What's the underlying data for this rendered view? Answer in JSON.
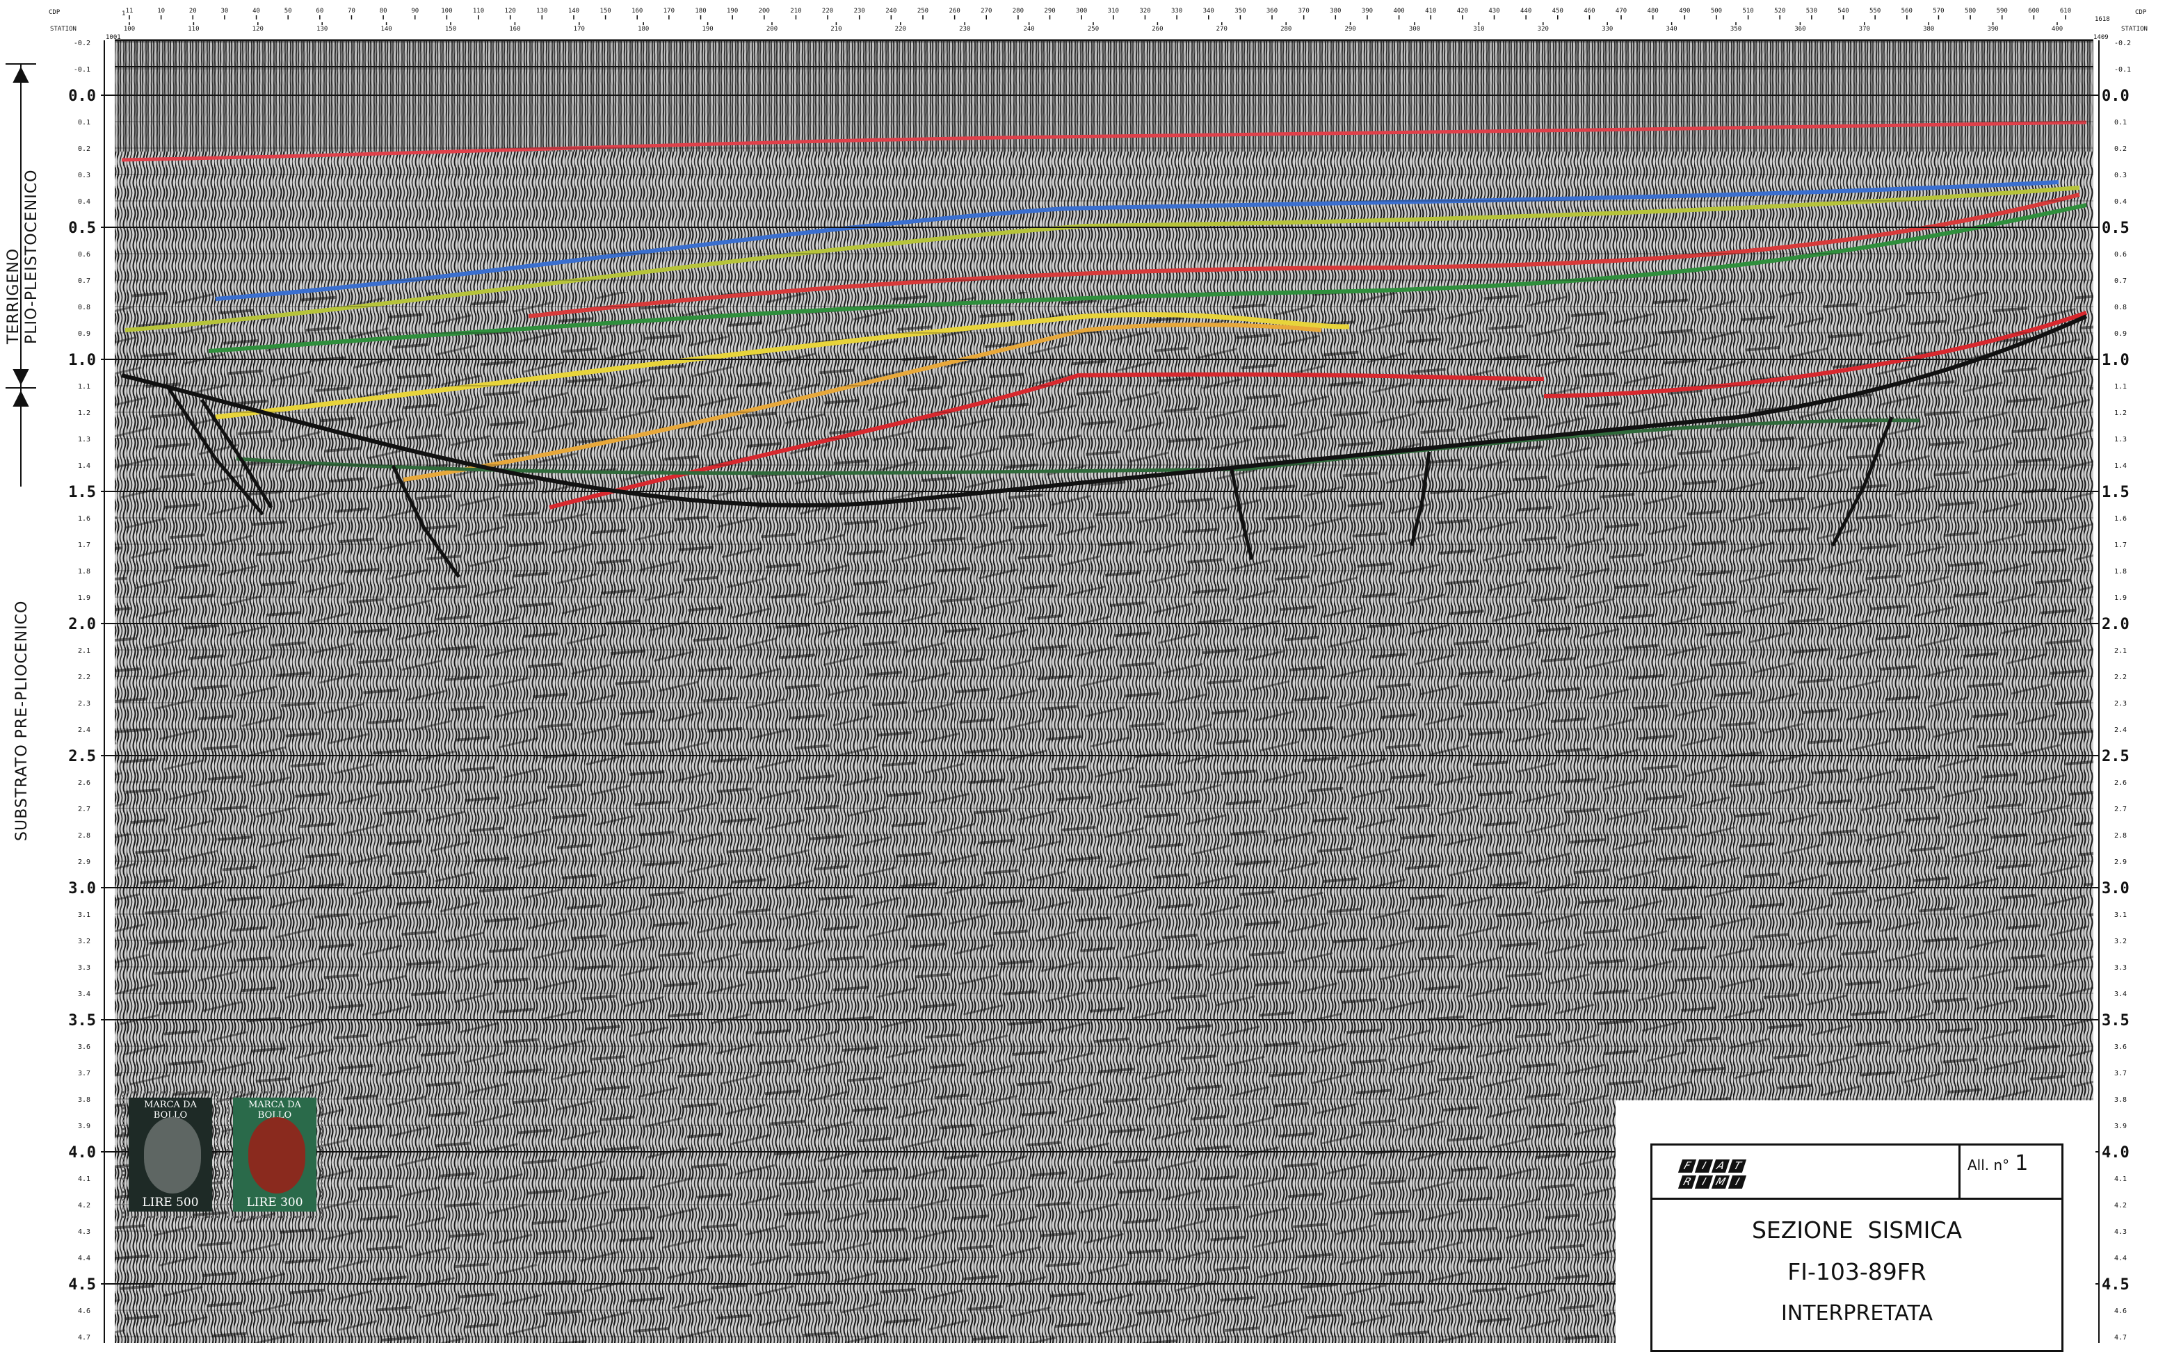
{
  "header": {
    "cdp_label_left": "CDP",
    "station_label_left": "STATION",
    "cdp_label_right": "CDP",
    "station_label_right": "STATION",
    "cdp_first": "1",
    "cdp_last": "1618",
    "station_first": "1001",
    "station_last": "1409",
    "cdp_ticks": [
      "11",
      "10",
      "20",
      "30",
      "40",
      "50",
      "60",
      "70",
      "80",
      "90",
      "100",
      "110",
      "120",
      "130",
      "140",
      "150",
      "160",
      "170",
      "180",
      "190",
      "200",
      "210",
      "220",
      "230",
      "240",
      "250",
      "260",
      "270",
      "280",
      "290",
      "300",
      "310",
      "320",
      "330",
      "340",
      "350",
      "360",
      "370",
      "380",
      "390",
      "400",
      "410",
      "420",
      "430",
      "440",
      "450",
      "460",
      "470",
      "480",
      "490",
      "500",
      "510",
      "520",
      "530",
      "540",
      "550",
      "560",
      "570",
      "580",
      "590",
      "600",
      "610"
    ],
    "station_ticks": [
      "100",
      "110",
      "120",
      "130",
      "140",
      "150",
      "160",
      "170",
      "180",
      "190",
      "200",
      "210",
      "220",
      "230",
      "240",
      "250",
      "260",
      "270",
      "280",
      "290",
      "300",
      "310",
      "320",
      "330",
      "340",
      "350",
      "360",
      "370",
      "380",
      "390",
      "400"
    ]
  },
  "time_axis": {
    "major": [
      "0.0",
      "0.5",
      "1.0",
      "1.5",
      "2.0",
      "2.5",
      "3.0",
      "3.5",
      "4.0",
      "4.5"
    ],
    "minor": [
      "-0.2",
      "-0.1",
      "0.1",
      "0.2",
      "0.3",
      "0.4",
      "0.6",
      "0.7",
      "0.8",
      "0.9",
      "1.1",
      "1.2",
      "1.3",
      "1.4",
      "1.6",
      "1.7",
      "1.8",
      "1.9",
      "2.1",
      "2.2",
      "2.3",
      "2.4",
      "2.6",
      "2.7",
      "2.8",
      "2.9",
      "3.1",
      "3.2",
      "3.3",
      "3.4",
      "3.6",
      "3.7",
      "3.8",
      "3.9",
      "4.1",
      "4.2",
      "4.3",
      "4.4",
      "4.6",
      "4.7"
    ]
  },
  "units": {
    "upper_line1": "TERRIGENO",
    "upper_line2": "PLIO-PLEISTOCENICO",
    "lower_line1": "SUBSTRATO   PRE-PLIOCENICO"
  },
  "horizons": [
    {
      "color": "#e0404a",
      "name": "h-red-shallow"
    },
    {
      "color": "#3a6fd0",
      "name": "h-blue"
    },
    {
      "color": "#b7c43a",
      "name": "h-yellowgreen"
    },
    {
      "color": "#d83a3a",
      "name": "h-red-mid"
    },
    {
      "color": "#2f8f3c",
      "name": "h-green"
    },
    {
      "color": "#e8d43a",
      "name": "h-yellow"
    },
    {
      "color": "#e8a83a",
      "name": "h-orange"
    },
    {
      "color": "#d8282e",
      "name": "h-red-deep"
    },
    {
      "color": "#2f6a3a",
      "name": "h-green-deep"
    }
  ],
  "stamps": [
    {
      "header": "MARCA DA BOLLO",
      "value": "LIRE 500",
      "bg": "#1e2a26",
      "portrait": "#5e6663"
    },
    {
      "header": "MARCA DA BOLLO",
      "value": "LIRE 300",
      "bg": "#2a6a4a",
      "portrait": "#8a2a1e"
    }
  ],
  "title_block": {
    "company_row1": "FIAT",
    "company_row2": "RIMI",
    "all_label": "All. n°",
    "all_number": "1",
    "line1": "SEZIONE  SISMICA",
    "line2": "FI-103-89FR",
    "line3": "INTERPRETATA"
  }
}
